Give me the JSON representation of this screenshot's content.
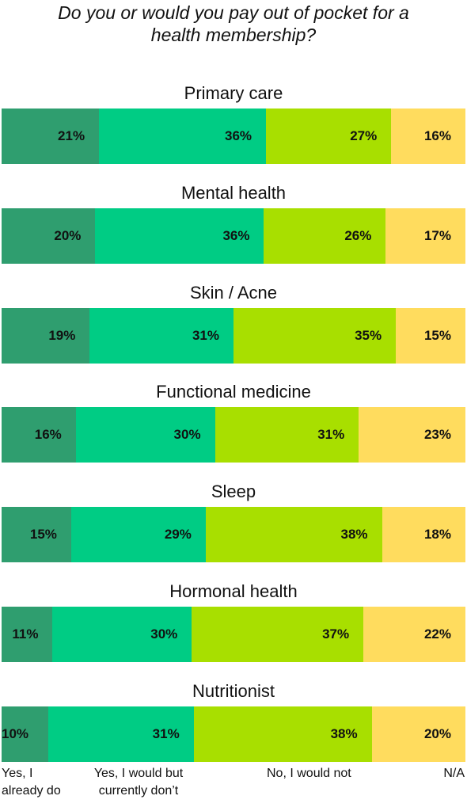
{
  "title_lines": [
    "Do you or would you pay out of pocket for a",
    "health membership?"
  ],
  "colors": {
    "yes_already": "#2f9e6f",
    "yes_would": "#00cc84",
    "no": "#a8df00",
    "na": "#ffdc5e"
  },
  "legend": {
    "yes_already_lines": [
      "Yes, I",
      "already do"
    ],
    "yes_would_lines": [
      "Yes, I would but",
      "currently don’t"
    ],
    "no": "No, I would not",
    "na": "N/A"
  },
  "chart_data": {
    "type": "bar",
    "orientation": "horizontal",
    "stacked": true,
    "percent_stacked": true,
    "categories": [
      "Primary care",
      "Mental health",
      "Skin / Acne",
      "Functional medicine",
      "Sleep",
      "Hormonal health",
      "Nutritionist"
    ],
    "series": [
      {
        "name": "Yes, I already do",
        "values": [
          21,
          20,
          19,
          16,
          15,
          11,
          10
        ],
        "labels": [
          "21%",
          "20%",
          "19%",
          "16%",
          "15%",
          "11%",
          "10%"
        ]
      },
      {
        "name": "Yes, I would but currently don’t",
        "values": [
          36,
          36,
          31,
          30,
          29,
          30,
          31
        ],
        "labels": [
          "36%",
          "36%",
          "31%",
          "30%",
          "29%",
          "30%",
          "31%"
        ]
      },
      {
        "name": "No, I would not",
        "values": [
          27,
          26,
          35,
          31,
          38,
          37,
          38
        ],
        "labels": [
          "27%",
          "26%",
          "35%",
          "31%",
          "38%",
          "37%",
          "38%"
        ]
      },
      {
        "name": "N/A",
        "values": [
          16,
          17,
          15,
          23,
          18,
          22,
          20
        ],
        "labels": [
          "16%",
          "17%",
          "15%",
          "23%",
          "18%",
          "22%",
          "20%"
        ]
      }
    ],
    "legend_position": "bottom",
    "grid": false
  }
}
